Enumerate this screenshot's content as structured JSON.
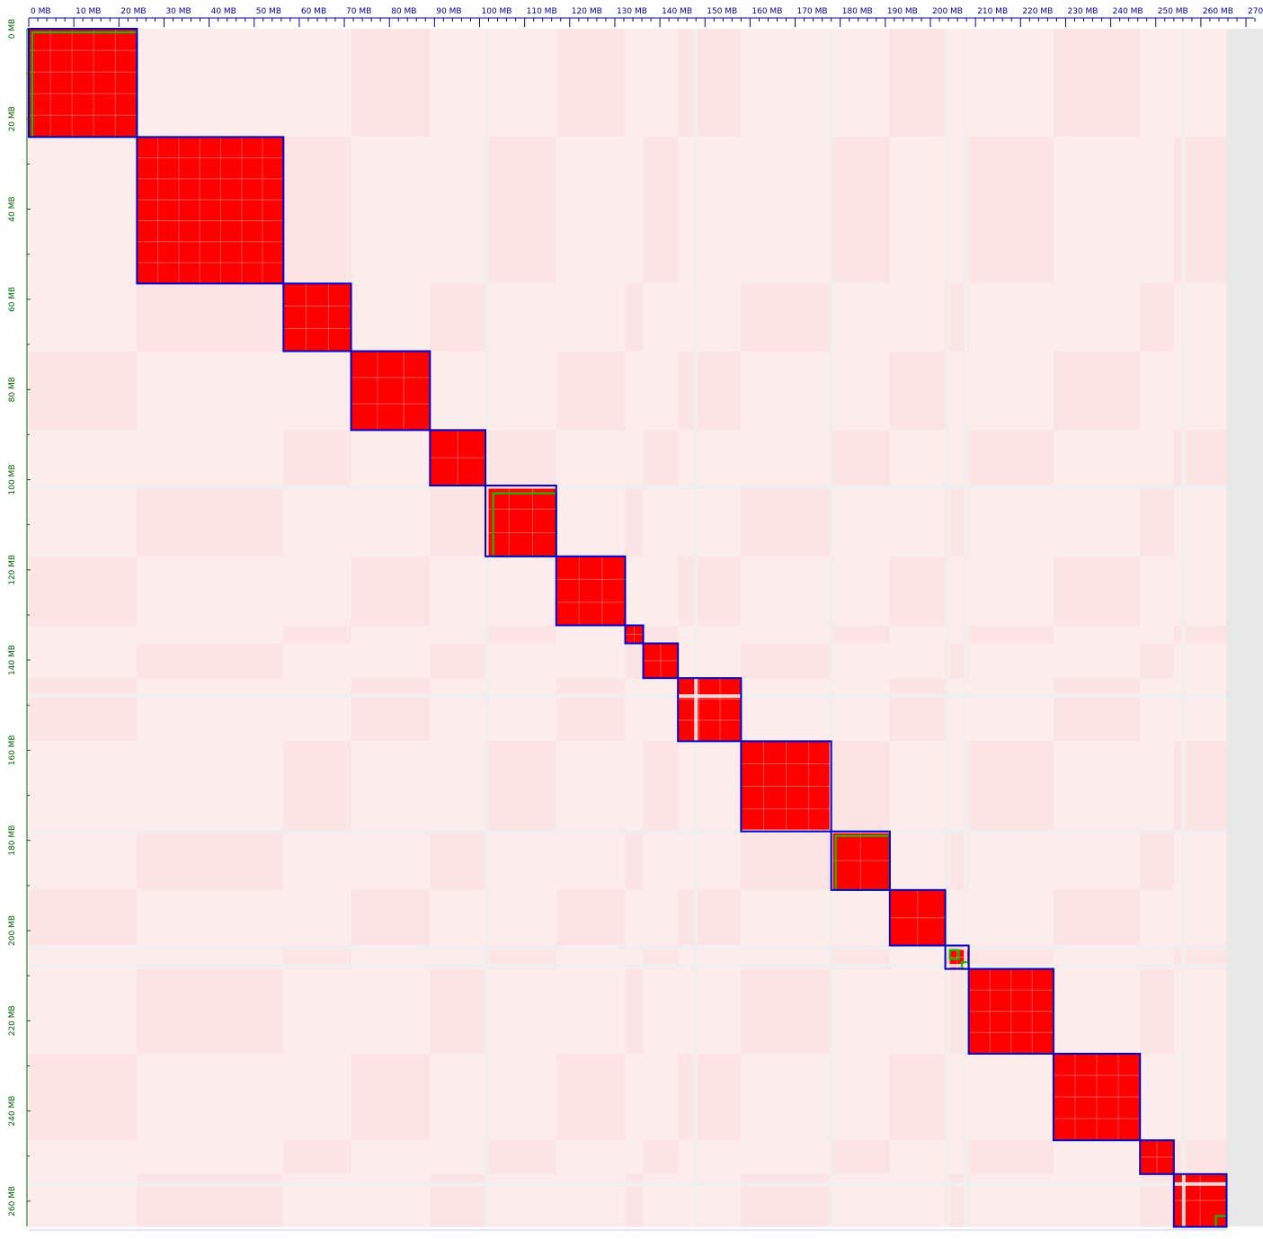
{
  "chart_data": {
    "type": "heatmap",
    "title": "",
    "xlabel": "",
    "ylabel": "",
    "unit": "MB",
    "xlim": [
      0,
      275
    ],
    "ylim": [
      0,
      275
    ],
    "genome_length_mb": 265.7,
    "x_tick_values": [
      0,
      10,
      20,
      30,
      40,
      50,
      60,
      70,
      80,
      90,
      100,
      110,
      120,
      130,
      140,
      150,
      160,
      170,
      180,
      190,
      200,
      210,
      220,
      230,
      240,
      250,
      260,
      270
    ],
    "y_tick_values": [
      0,
      20,
      40,
      60,
      80,
      100,
      120,
      140,
      160,
      180,
      200,
      220,
      240,
      260
    ],
    "x_tick_labels": [
      "0 MB",
      "10 MB",
      "20 MB",
      "30 MB",
      "40 MB",
      "50 MB",
      "60 MB",
      "70 MB",
      "80 MB",
      "90 MB",
      "100 MB",
      "110 MB",
      "120 MB",
      "130 MB",
      "140 MB",
      "150 MB",
      "160 MB",
      "170 MB",
      "180 MB",
      "190 MB",
      "200 MB",
      "210 MB",
      "220 MB",
      "230 MB",
      "240 MB",
      "250 MB",
      "260 MB",
      "270 MB"
    ],
    "y_tick_labels": [
      "0 MB",
      "20 MB",
      "40 MB",
      "60 MB",
      "80 MB",
      "100 MB",
      "120 MB",
      "140 MB",
      "160 MB",
      "180 MB",
      "200 MB",
      "220 MB",
      "240 MB",
      "260 MB"
    ],
    "colors": {
      "contact": "#ff0000",
      "background": "#fdecec",
      "unmapped_gap": "#eeeeee",
      "scaffold_box": "#0000cc",
      "contig_box": "#00cc00",
      "x_axis_text": "#0000aa",
      "y_axis_text": "#006600"
    },
    "scaffolds": [
      {
        "start": 0.0,
        "end": 24.0
      },
      {
        "start": 24.0,
        "end": 56.5
      },
      {
        "start": 56.5,
        "end": 71.5
      },
      {
        "start": 71.5,
        "end": 89.0
      },
      {
        "start": 89.0,
        "end": 101.3
      },
      {
        "start": 101.3,
        "end": 117.0
      },
      {
        "start": 117.0,
        "end": 132.3
      },
      {
        "start": 132.3,
        "end": 136.3
      },
      {
        "start": 136.3,
        "end": 144.0
      },
      {
        "start": 144.0,
        "end": 158.0
      },
      {
        "start": 158.0,
        "end": 178.0
      },
      {
        "start": 178.0,
        "end": 191.0
      },
      {
        "start": 191.0,
        "end": 203.3
      },
      {
        "start": 203.3,
        "end": 208.5
      },
      {
        "start": 208.5,
        "end": 227.3
      },
      {
        "start": 227.3,
        "end": 246.5
      },
      {
        "start": 246.5,
        "end": 254.0
      },
      {
        "start": 254.0,
        "end": 265.7
      }
    ],
    "contigs": [
      {
        "start": 0.8,
        "end": 24.0
      },
      {
        "start": 103.0,
        "end": 117.0
      },
      {
        "start": 179.0,
        "end": 191.0
      },
      {
        "start": 204.3,
        "end": 206.3
      },
      {
        "start": 207.0,
        "end": 208.5
      },
      {
        "start": 263.3,
        "end": 265.7
      }
    ],
    "gaps": [
      101.6,
      148.0,
      178.0,
      203.9,
      207.8,
      256.2
    ]
  }
}
